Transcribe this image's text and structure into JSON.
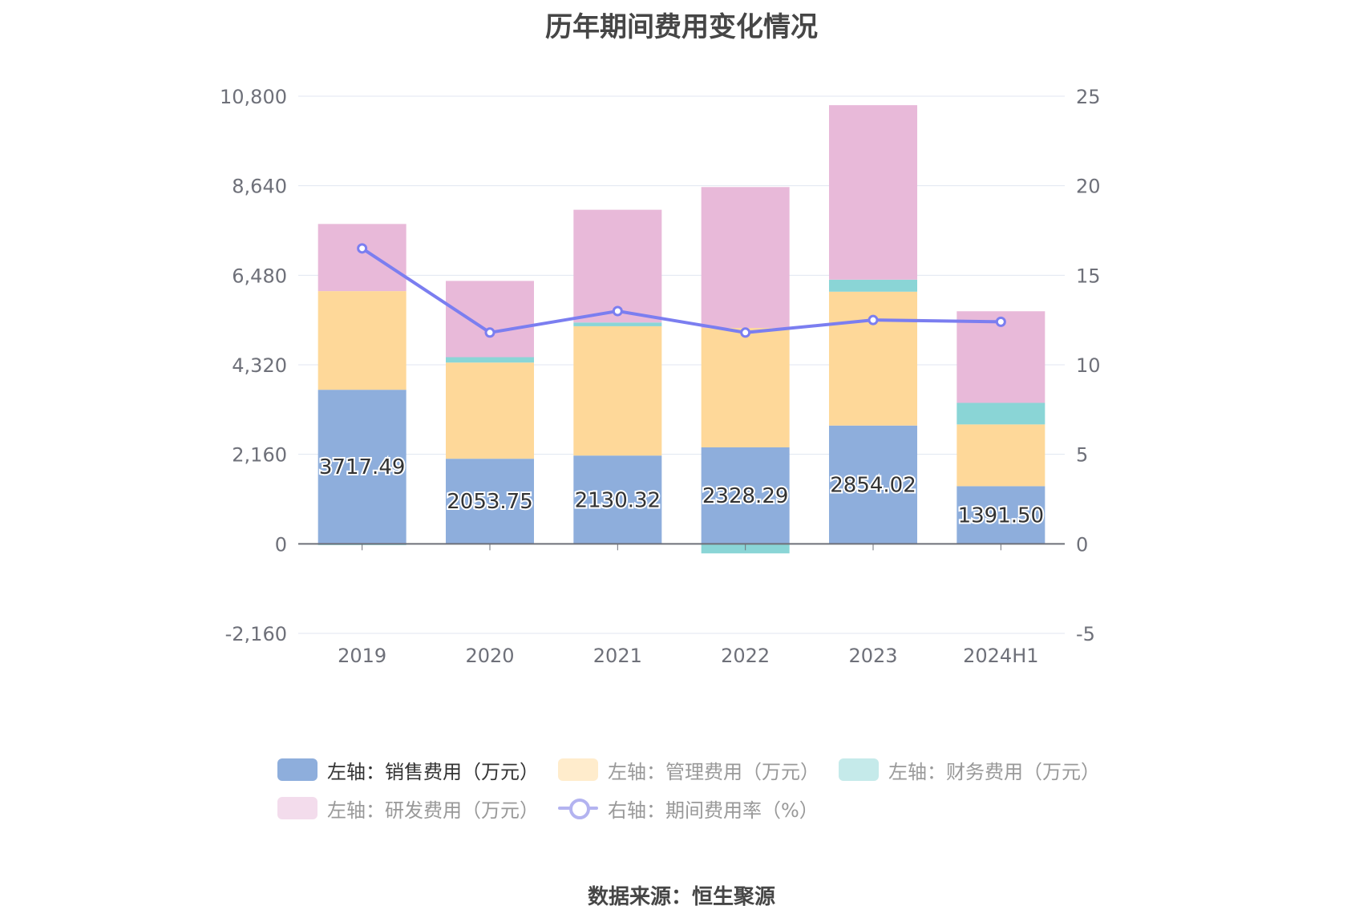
{
  "title": "历年期间费用变化情况",
  "source": "数据来源：恒生聚源",
  "chart_data": {
    "type": "bar",
    "stacked": true,
    "categories": [
      "2019",
      "2020",
      "2021",
      "2022",
      "2023",
      "2024H1"
    ],
    "left_axis": {
      "ylim": [
        -2160,
        10800
      ],
      "ticks": [
        "-2,160",
        "0",
        "2,160",
        "4,320",
        "6,480",
        "8,640",
        "10,800"
      ],
      "tick_values": [
        -2160,
        0,
        2160,
        4320,
        6480,
        8640,
        10800
      ]
    },
    "right_axis": {
      "ylim": [
        -5,
        25
      ],
      "ticks": [
        "-5",
        "0",
        "5",
        "10",
        "15",
        "20",
        "25"
      ],
      "tick_values": [
        -5,
        0,
        5,
        10,
        15,
        20,
        25
      ]
    },
    "series": [
      {
        "name": "左轴：销售费用（万元）",
        "axis": "left",
        "color": "#8eaedc",
        "values": [
          3717.49,
          2053.75,
          2130.32,
          2328.29,
          2854.02,
          1391.5
        ],
        "labels": [
          "3717.49",
          "2053.75",
          "2130.32",
          "2328.29",
          "2854.02",
          "1391.50"
        ]
      },
      {
        "name": "左轴：管理费用（万元）",
        "axis": "left",
        "color": "#fed899",
        "values": [
          2380,
          2320,
          3120,
          2880,
          3230,
          1490
        ]
      },
      {
        "name": "左轴：财务费用（万元）",
        "axis": "left",
        "color": "#8ad5d6",
        "values": [
          -30,
          130,
          90,
          -230,
          290,
          520
        ]
      },
      {
        "name": "左轴：研发费用（万元）",
        "axis": "left",
        "color": "#e8b9d9",
        "values": [
          1620,
          1840,
          2720,
          3400,
          4210,
          2210
        ]
      },
      {
        "name": "右轴：期间费用率（%）",
        "axis": "right",
        "type": "line",
        "color": "#7b7ef0",
        "values": [
          16.5,
          11.8,
          13.0,
          11.8,
          12.5,
          12.4
        ]
      }
    ],
    "legend_position": "bottom",
    "grid": true
  }
}
